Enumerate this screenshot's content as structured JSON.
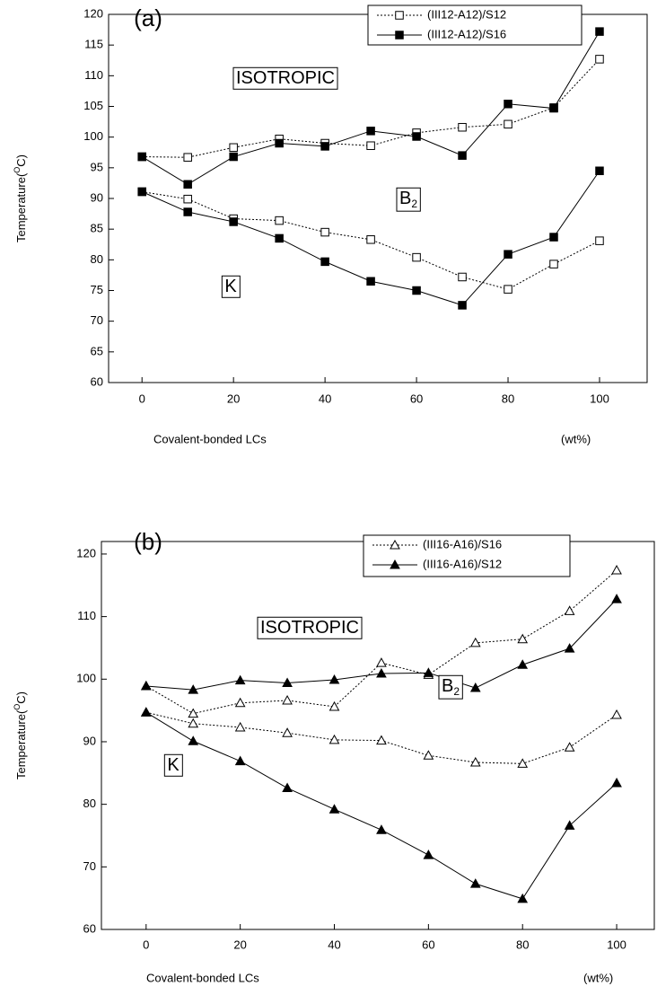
{
  "chart_data": [
    {
      "type": "line",
      "label": "(a)",
      "y_label": {
        "text": "Temperature(",
        "sup": "O",
        "rest": "C)"
      },
      "x_label": "Covalent-bonded LCs",
      "x_unit": "(wt%)",
      "x": [
        0,
        10,
        20,
        30,
        40,
        50,
        60,
        70,
        80,
        90,
        100
      ],
      "xlim": [
        -7.3,
        110.4
      ],
      "xticks": [
        0,
        20,
        40,
        60,
        80,
        100
      ],
      "ylim": [
        60,
        120
      ],
      "yticks": [
        60,
        65,
        70,
        75,
        80,
        85,
        90,
        95,
        100,
        105,
        110,
        115,
        120
      ],
      "legend": "top-right",
      "series": [
        {
          "name": "(III12-A12)/S12",
          "color": "#000000",
          "marker": "square",
          "filled": false,
          "line_style": "dotted",
          "values": [
            96.8,
            96.7,
            98.3,
            99.7,
            99.0,
            98.6,
            100.7,
            101.6,
            102.1,
            104.8,
            112.7
          ]
        },
        {
          "name": "(III12-A12)/S16",
          "color": "#000000",
          "marker": "square",
          "filled": true,
          "line_style": "solid",
          "values": [
            96.8,
            92.3,
            96.8,
            99.0,
            98.5,
            101.0,
            100.1,
            97.0,
            105.4,
            104.7,
            117.2
          ]
        },
        {
          "color": "#000000",
          "marker": "square",
          "filled": false,
          "line_style": "dotted",
          "values": [
            91.1,
            89.9,
            86.7,
            86.4,
            84.5,
            83.3,
            80.4,
            77.2,
            75.2,
            79.3,
            83.1
          ]
        },
        {
          "color": "#000000",
          "marker": "square",
          "filled": true,
          "line_style": "solid",
          "values": [
            91.1,
            87.8,
            86.2,
            83.5,
            79.7,
            76.5,
            75.0,
            72.6,
            80.9,
            83.7,
            94.5
          ]
        }
      ],
      "annotations": [
        {
          "text": "ISOTROPIC"
        },
        {
          "text": "B",
          "sub": "2"
        },
        {
          "text": "K"
        }
      ]
    },
    {
      "type": "line",
      "label": "(b)",
      "y_label": {
        "text": "Temperature(",
        "sup": "O",
        "rest": "C)"
      },
      "x_label": "Covalent-bonded LCs",
      "x_unit": "(wt%)",
      "x": [
        0,
        10,
        20,
        30,
        40,
        50,
        60,
        70,
        80,
        90,
        100
      ],
      "xlim": [
        -9.5,
        108
      ],
      "xticks": [
        0,
        20,
        40,
        60,
        80,
        100
      ],
      "ylim": [
        60,
        122
      ],
      "yticks": [
        60,
        70,
        80,
        90,
        100,
        110,
        120
      ],
      "legend": "top-right",
      "series": [
        {
          "name": "(III16-A16)/S16",
          "color": "#000000",
          "marker": "triangle",
          "filled": false,
          "line_style": "dotted",
          "values": [
            98.9,
            94.5,
            96.2,
            96.6,
            95.6,
            102.6,
            100.7,
            105.8,
            106.4,
            110.9,
            117.4
          ]
        },
        {
          "name": "(III16-A16)/S12",
          "color": "#000000",
          "marker": "triangle",
          "filled": true,
          "line_style": "solid",
          "values": [
            98.9,
            98.3,
            99.8,
            99.4,
            99.9,
            100.9,
            101.0,
            98.6,
            102.3,
            104.9,
            112.8
          ]
        },
        {
          "color": "#000000",
          "marker": "triangle",
          "filled": false,
          "line_style": "dotted",
          "values": [
            94.7,
            92.9,
            92.3,
            91.4,
            90.3,
            90.2,
            87.8,
            86.7,
            86.5,
            89.1,
            94.3
          ]
        },
        {
          "color": "#000000",
          "marker": "triangle",
          "filled": true,
          "line_style": "solid",
          "values": [
            94.7,
            90.1,
            86.9,
            82.6,
            79.2,
            75.9,
            71.9,
            67.3,
            64.9,
            76.6,
            83.4
          ]
        }
      ],
      "annotations": [
        {
          "text": "ISOTROPIC"
        },
        {
          "text": "B",
          "sub": "2"
        },
        {
          "text": "K"
        }
      ]
    }
  ]
}
